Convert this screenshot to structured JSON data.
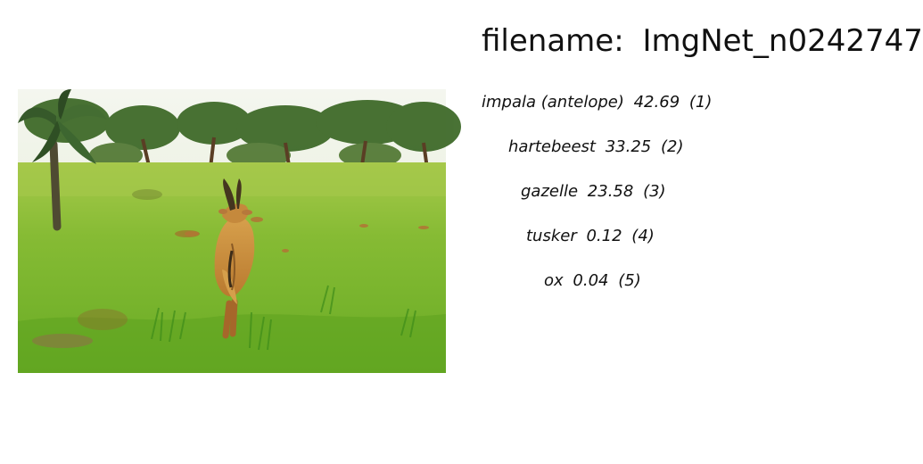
{
  "header": {
    "filename_label": "filename:",
    "filename_value": "ImgNet_n0242747"
  },
  "image": {
    "subject": "hartebeest walking away in grassy savanna with acacia trees",
    "palette": {
      "sky": "#f2f4ea",
      "grass": "#7db62e",
      "grass_dark": "#4f8f1f",
      "trees": "#3f6a2a",
      "animal": "#c58a3a"
    }
  },
  "predictions": [
    {
      "label": "impala (antelope)",
      "score": "42.69",
      "rank": "(1)"
    },
    {
      "label": "hartebeest",
      "score": "33.25",
      "rank": "(2)"
    },
    {
      "label": "gazelle",
      "score": "23.58",
      "rank": "(3)"
    },
    {
      "label": "tusker",
      "score": "0.12",
      "rank": "(4)"
    },
    {
      "label": "ox",
      "score": "0.04",
      "rank": "(5)"
    }
  ]
}
